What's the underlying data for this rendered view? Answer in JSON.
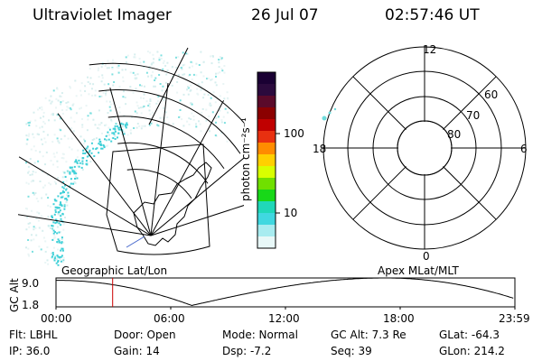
{
  "header": {
    "instrument": "Ultraviolet Imager",
    "date": "26 Jul 07",
    "time": "02:57:46 UT"
  },
  "geo_panel": {
    "label": "Geographic Lat/Lon"
  },
  "colorbar": {
    "unit_label": "photon cm⁻²s⁻¹",
    "ticks": [
      "100",
      "10"
    ],
    "colors": [
      "#1a0033",
      "#2b0a3d",
      "#5a0a2a",
      "#8b0000",
      "#c00000",
      "#e83010",
      "#ff8c00",
      "#ffd000",
      "#d8ff00",
      "#70e000",
      "#18d818",
      "#20d8b8",
      "#40d8e0",
      "#a8ecf0",
      "#e8f8f8"
    ]
  },
  "polar_panel": {
    "label": "Apex MLat/MLT",
    "mlt_labels": {
      "top": "12",
      "left": "18",
      "right": "6",
      "bottom": "0"
    },
    "lat_labels": [
      "60",
      "70",
      "80"
    ]
  },
  "orbit_plot": {
    "ylabel": "GC Alt",
    "yticks": [
      "9.0",
      "1.8"
    ],
    "xticks": [
      "00:00",
      "06:00",
      "12:00",
      "18:00",
      "23:59"
    ],
    "marker_color": "#cc0000",
    "marker_time_hours": 2.96
  },
  "info": {
    "row1": {
      "filt": "Flt: LBHL",
      "door": "Door: Open",
      "mode": "Mode: Normal",
      "gcalt": "GC Alt: 7.3 Re",
      "glat": "GLat: -64.3"
    },
    "row2": {
      "ip": "IP: 36.0",
      "gain": "Gain: 14",
      "dsp": "Dsp:    -7.2",
      "seq": "Seq: 39",
      "glon": "GLon: 214.2"
    }
  }
}
